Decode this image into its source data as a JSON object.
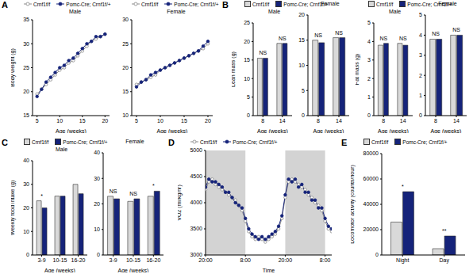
{
  "chart_data": [
    {
      "panel": "A",
      "type": "line",
      "title": "Male",
      "xlabel": "Age (weeks)",
      "ylabel": "Body weight (g)",
      "legend": "top",
      "x": [
        5,
        6,
        7,
        8,
        9,
        10,
        11,
        12,
        13,
        14,
        15,
        16,
        17,
        18,
        19,
        20
      ],
      "xlim": [
        4,
        21
      ],
      "xticks": [
        5,
        10,
        15,
        20
      ],
      "ylim": [
        15,
        35
      ],
      "yticks": [
        15,
        20,
        25,
        30,
        35
      ],
      "series": [
        {
          "name": "Crnf1f/f",
          "color": "#8c8c8c",
          "marker": "open_circle",
          "values": [
            19.5,
            20.5,
            21.5,
            22.5,
            23.5,
            24.5,
            25,
            26,
            26.5,
            27.5,
            28.5,
            29.5,
            30.5,
            31,
            31.5,
            32
          ]
        },
        {
          "name": "Pomc-Cre; Crnf1f/+",
          "color": "#15237a",
          "marker": "circle",
          "values": [
            19,
            20.5,
            22,
            23,
            24,
            25,
            25.5,
            26.5,
            27,
            28,
            29,
            30,
            30.5,
            31.5,
            31.5,
            32
          ]
        }
      ]
    },
    {
      "type": "line",
      "title": "Female",
      "xlabel": "Age (weeks)",
      "legend": "top",
      "x": [
        5,
        6,
        7,
        8,
        9,
        10,
        11,
        12,
        13,
        14,
        15,
        16,
        17,
        18,
        19,
        20
      ],
      "xlim": [
        4,
        21
      ],
      "xticks": [
        5,
        10,
        15,
        20
      ],
      "ylim": [
        10,
        30
      ],
      "yticks": [
        10,
        15,
        20,
        25,
        30
      ],
      "series": [
        {
          "name": "Crnf1f/f",
          "color": "#8c8c8c",
          "marker": "open_circle",
          "values": [
            16.5,
            17,
            17.5,
            18,
            18.5,
            19.5,
            20,
            20.5,
            21,
            21.5,
            22,
            22.5,
            23,
            23.5,
            24,
            25
          ]
        },
        {
          "name": "Pomc-Cre; Crnf1f/+",
          "color": "#15237a",
          "marker": "circle",
          "values": [
            16,
            17,
            17.5,
            18.5,
            19,
            19.5,
            20,
            20.5,
            21,
            21.5,
            22,
            22.5,
            23,
            23.5,
            24.5,
            25.5
          ]
        }
      ]
    },
    {
      "panel": "B",
      "type": "bar",
      "title": "Male",
      "xlabel": "Age (weeks)",
      "ylabel": "Lean mass (g)",
      "legend": "top",
      "categories": [
        "8",
        "14"
      ],
      "ylim": [
        0,
        25
      ],
      "yticks": [
        0,
        5,
        10,
        15,
        20,
        25
      ],
      "series": [
        {
          "name": "Crnf1f/f",
          "color": "#d9d9d9",
          "values": [
            15.5,
            19.5
          ]
        },
        {
          "name": "Pomc-Cre; Crnf1f/+",
          "color": "#15237a",
          "values": [
            15.5,
            19.5
          ]
        }
      ],
      "annotations": [
        {
          "category": "8",
          "text": "NS"
        },
        {
          "category": "14",
          "text": "NS"
        }
      ]
    },
    {
      "type": "bar",
      "title": "Female",
      "xlabel": "Age (weeks)",
      "categories": [
        "8",
        "14"
      ],
      "ylim": [
        0,
        20
      ],
      "yticks": [
        0,
        5,
        10,
        15,
        20
      ],
      "series": [
        {
          "name": "Crnf1f/f",
          "color": "#d9d9d9",
          "values": [
            15,
            15.5
          ]
        },
        {
          "name": "Pomc-Cre; Crnf1f/+",
          "color": "#15237a",
          "values": [
            14.5,
            15.5
          ]
        }
      ],
      "annotations": [
        {
          "category": "8",
          "text": "NS"
        },
        {
          "category": "14",
          "text": "NS"
        }
      ]
    },
    {
      "type": "bar",
      "title": "Male",
      "xlabel": "Age (weeks)",
      "ylabel": "Fat mass (g)",
      "legend": "top",
      "categories": [
        "8",
        "14"
      ],
      "ylim": [
        0,
        5
      ],
      "yticks": [
        0,
        1,
        2,
        3,
        4,
        5
      ],
      "series": [
        {
          "name": "Crnf1f/f",
          "color": "#d9d9d9",
          "values": [
            3.8,
            3.9
          ]
        },
        {
          "name": "Pomc-Cre; Crnf1f/+",
          "color": "#15237a",
          "values": [
            3.9,
            3.8
          ]
        }
      ],
      "annotations": [
        {
          "category": "8",
          "text": "NS"
        },
        {
          "category": "14",
          "text": "NS"
        }
      ]
    },
    {
      "type": "bar",
      "title": "Female",
      "xlabel": "Age (weeks)",
      "categories": [
        "8",
        "14"
      ],
      "ylim": [
        0,
        5
      ],
      "yticks": [
        0,
        1,
        2,
        3,
        4,
        5
      ],
      "series": [
        {
          "name": "Crnf1f/f",
          "color": "#d9d9d9",
          "values": [
            3.8,
            4.0
          ]
        },
        {
          "name": "Pomc-Cre; Crnf1f/+",
          "color": "#15237a",
          "values": [
            3.8,
            4.0
          ]
        }
      ],
      "annotations": [
        {
          "category": "8",
          "text": "NS"
        },
        {
          "category": "14",
          "text": "NS"
        }
      ]
    },
    {
      "panel": "C",
      "type": "bar",
      "title": "Male",
      "xlabel": "Age (weeks)",
      "ylabel": "Weekly food intake (g)",
      "legend": "top",
      "categories": [
        "3-9",
        "10-15",
        "16-20"
      ],
      "ylim": [
        0,
        40
      ],
      "yticks": [
        0,
        10,
        20,
        30,
        40
      ],
      "series": [
        {
          "name": "Crnf1f/f",
          "color": "#d9d9d9",
          "values": [
            23,
            25,
            30
          ]
        },
        {
          "name": "Pomc-Cre; Crnf1f/+",
          "color": "#15237a",
          "values": [
            20,
            25,
            26
          ]
        }
      ],
      "annotations": [
        {
          "category": "3-9",
          "text": "*"
        }
      ]
    },
    {
      "type": "bar",
      "title": "Female",
      "xlabel": "Age (weeks)",
      "categories": [
        "3-9",
        "10-15",
        "16-20"
      ],
      "ylim": [
        0,
        40
      ],
      "yticks": [
        0,
        10,
        20,
        30,
        40
      ],
      "series": [
        {
          "name": "Crnf1f/f",
          "color": "#d9d9d9",
          "values": [
            23,
            21,
            23
          ]
        },
        {
          "name": "Pomc-Cre; Crnf1f/+",
          "color": "#15237a",
          "values": [
            22,
            22,
            25
          ]
        }
      ],
      "annotations": [
        {
          "category": "3-9",
          "text": "NS"
        },
        {
          "category": "10-15",
          "text": "NS"
        },
        {
          "category": "16-20",
          "text": "*"
        }
      ]
    },
    {
      "panel": "D",
      "type": "line",
      "xlabel": "Time",
      "ylabel": "VO2 (ml/kg/hr)",
      "legend": "top",
      "x": [
        0,
        1,
        2,
        3,
        4,
        5,
        6,
        7,
        8,
        9,
        10,
        11,
        12,
        13,
        14,
        15,
        16,
        17,
        18,
        19,
        20,
        21,
        22,
        23,
        24,
        25,
        26,
        27,
        28,
        29,
        30,
        31,
        32,
        33,
        34,
        35,
        36,
        37,
        38
      ],
      "xlim": [
        0,
        38
      ],
      "xticks": [
        {
          "value": 0,
          "label": "20:00"
        },
        {
          "value": 12,
          "label": "8:00"
        },
        {
          "value": 24,
          "label": "20:00"
        },
        {
          "value": 36,
          "label": "8:00"
        }
      ],
      "ylim": [
        3000,
        5000
      ],
      "yticks": [
        3000,
        3500,
        4000,
        4500,
        5000
      ],
      "shaded_x": [
        [
          0,
          12
        ],
        [
          24,
          36
        ]
      ],
      "series": [
        {
          "name": "Crnf1f/f",
          "color": "#8c8c8c",
          "marker": "open_circle",
          "values": [
            4250,
            4400,
            4450,
            4350,
            4300,
            4250,
            4200,
            4150,
            4100,
            4050,
            3950,
            3850,
            3650,
            3450,
            3350,
            3300,
            3350,
            3300,
            3250,
            3300,
            3350,
            3400,
            3500,
            3700,
            4100,
            4400,
            4450,
            4400,
            4350,
            4300,
            4250,
            4150,
            4100,
            4000,
            3950,
            3850,
            3650,
            3500,
            3450
          ]
        },
        {
          "name": "Pomc-Cre; Crnf1f/+",
          "color": "#15237a",
          "marker": "circle",
          "values": [
            4300,
            4450,
            4400,
            4400,
            4350,
            4300,
            4200,
            4200,
            4100,
            4000,
            3950,
            3900,
            3700,
            3500,
            3400,
            3350,
            3300,
            3350,
            3300,
            3350,
            3400,
            3450,
            3550,
            3750,
            4150,
            4450,
            4400,
            4450,
            4300,
            4350,
            4200,
            4200,
            4050,
            4050,
            3900,
            3900,
            3700,
            3550,
            3500
          ]
        }
      ]
    },
    {
      "panel": "E",
      "type": "bar",
      "ylabel": "Locomotor activity (counts/hour)",
      "legend": "top",
      "categories": [
        "Night",
        "Day"
      ],
      "ylim": [
        0,
        80000
      ],
      "yticks": [
        0,
        20000,
        40000,
        60000,
        80000
      ],
      "series": [
        {
          "name": "Crnf1f/f",
          "color": "#d9d9d9",
          "values": [
            26000,
            5000
          ]
        },
        {
          "name": "Pomc-Cre; Crnf1f/+",
          "color": "#15237a",
          "values": [
            50000,
            15000
          ]
        }
      ],
      "annotations": [
        {
          "category": "Night",
          "text": "*"
        },
        {
          "category": "Day",
          "text": "**"
        }
      ]
    }
  ]
}
